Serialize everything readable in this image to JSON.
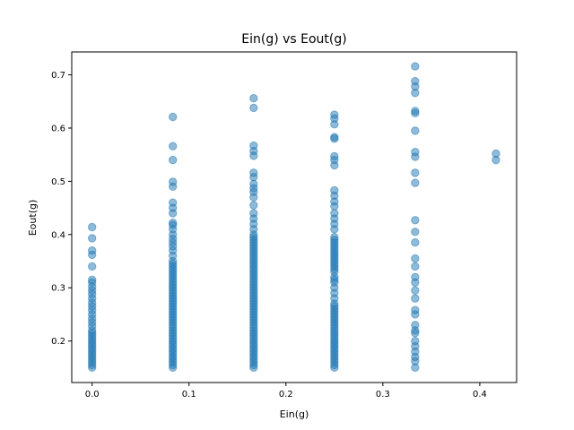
{
  "chart_data": {
    "type": "scatter",
    "title": "Ein(g) vs Eout(g)",
    "xlabel": "Ein(g)",
    "ylabel": "Eout(g)",
    "xlim": [
      -0.021,
      0.438
    ],
    "ylim": [
      0.122,
      0.743
    ],
    "xticks": [
      0.0,
      0.1,
      0.2,
      0.3,
      0.4
    ],
    "xtick_labels": [
      "0.0",
      "0.1",
      "0.2",
      "0.3",
      "0.4"
    ],
    "yticks": [
      0.2,
      0.3,
      0.4,
      0.5,
      0.6,
      0.7
    ],
    "ytick_labels": [
      "0.2",
      "0.3",
      "0.4",
      "0.5",
      "0.6",
      "0.7"
    ],
    "grid": false,
    "marker_color": "#1f77b4",
    "marker_alpha": 0.5,
    "series": [
      {
        "points": [
          [
            0.0,
            0.15
          ],
          [
            0.0,
            0.155
          ],
          [
            0.0,
            0.16
          ],
          [
            0.0,
            0.165
          ],
          [
            0.0,
            0.17
          ],
          [
            0.0,
            0.175
          ],
          [
            0.0,
            0.18
          ],
          [
            0.0,
            0.185
          ],
          [
            0.0,
            0.19
          ],
          [
            0.0,
            0.195
          ],
          [
            0.0,
            0.2
          ],
          [
            0.0,
            0.205
          ],
          [
            0.0,
            0.21
          ],
          [
            0.0,
            0.215
          ],
          [
            0.0,
            0.22
          ],
          [
            0.0,
            0.228
          ],
          [
            0.0,
            0.235
          ],
          [
            0.0,
            0.242
          ],
          [
            0.0,
            0.25
          ],
          [
            0.0,
            0.258
          ],
          [
            0.0,
            0.265
          ],
          [
            0.0,
            0.272
          ],
          [
            0.0,
            0.28
          ],
          [
            0.0,
            0.288
          ],
          [
            0.0,
            0.295
          ],
          [
            0.0,
            0.302
          ],
          [
            0.0,
            0.31
          ],
          [
            0.0,
            0.315
          ],
          [
            0.0,
            0.34
          ],
          [
            0.0,
            0.362
          ],
          [
            0.0,
            0.37
          ],
          [
            0.0,
            0.393
          ],
          [
            0.0,
            0.414
          ],
          [
            0.0833,
            0.15
          ],
          [
            0.0833,
            0.155
          ],
          [
            0.0833,
            0.16
          ],
          [
            0.0833,
            0.165
          ],
          [
            0.0833,
            0.17
          ],
          [
            0.0833,
            0.175
          ],
          [
            0.0833,
            0.18
          ],
          [
            0.0833,
            0.185
          ],
          [
            0.0833,
            0.19
          ],
          [
            0.0833,
            0.195
          ],
          [
            0.0833,
            0.2
          ],
          [
            0.0833,
            0.205
          ],
          [
            0.0833,
            0.21
          ],
          [
            0.0833,
            0.215
          ],
          [
            0.0833,
            0.22
          ],
          [
            0.0833,
            0.225
          ],
          [
            0.0833,
            0.23
          ],
          [
            0.0833,
            0.235
          ],
          [
            0.0833,
            0.24
          ],
          [
            0.0833,
            0.245
          ],
          [
            0.0833,
            0.25
          ],
          [
            0.0833,
            0.255
          ],
          [
            0.0833,
            0.26
          ],
          [
            0.0833,
            0.265
          ],
          [
            0.0833,
            0.27
          ],
          [
            0.0833,
            0.275
          ],
          [
            0.0833,
            0.28
          ],
          [
            0.0833,
            0.285
          ],
          [
            0.0833,
            0.29
          ],
          [
            0.0833,
            0.295
          ],
          [
            0.0833,
            0.3
          ],
          [
            0.0833,
            0.305
          ],
          [
            0.0833,
            0.31
          ],
          [
            0.0833,
            0.315
          ],
          [
            0.0833,
            0.32
          ],
          [
            0.0833,
            0.325
          ],
          [
            0.0833,
            0.33
          ],
          [
            0.0833,
            0.335
          ],
          [
            0.0833,
            0.34
          ],
          [
            0.0833,
            0.345
          ],
          [
            0.0833,
            0.35
          ],
          [
            0.0833,
            0.36
          ],
          [
            0.0833,
            0.37
          ],
          [
            0.0833,
            0.378
          ],
          [
            0.0833,
            0.385
          ],
          [
            0.0833,
            0.392
          ],
          [
            0.0833,
            0.4
          ],
          [
            0.0833,
            0.41
          ],
          [
            0.0833,
            0.418
          ],
          [
            0.0833,
            0.422
          ],
          [
            0.0833,
            0.44
          ],
          [
            0.0833,
            0.45
          ],
          [
            0.0833,
            0.46
          ],
          [
            0.0833,
            0.49
          ],
          [
            0.0833,
            0.499
          ],
          [
            0.0833,
            0.54
          ],
          [
            0.0833,
            0.566
          ],
          [
            0.0833,
            0.621
          ],
          [
            0.1667,
            0.15
          ],
          [
            0.1667,
            0.155
          ],
          [
            0.1667,
            0.16
          ],
          [
            0.1667,
            0.165
          ],
          [
            0.1667,
            0.17
          ],
          [
            0.1667,
            0.175
          ],
          [
            0.1667,
            0.18
          ],
          [
            0.1667,
            0.185
          ],
          [
            0.1667,
            0.19
          ],
          [
            0.1667,
            0.195
          ],
          [
            0.1667,
            0.2
          ],
          [
            0.1667,
            0.205
          ],
          [
            0.1667,
            0.21
          ],
          [
            0.1667,
            0.215
          ],
          [
            0.1667,
            0.22
          ],
          [
            0.1667,
            0.225
          ],
          [
            0.1667,
            0.23
          ],
          [
            0.1667,
            0.235
          ],
          [
            0.1667,
            0.24
          ],
          [
            0.1667,
            0.245
          ],
          [
            0.1667,
            0.25
          ],
          [
            0.1667,
            0.255
          ],
          [
            0.1667,
            0.26
          ],
          [
            0.1667,
            0.265
          ],
          [
            0.1667,
            0.27
          ],
          [
            0.1667,
            0.275
          ],
          [
            0.1667,
            0.28
          ],
          [
            0.1667,
            0.285
          ],
          [
            0.1667,
            0.29
          ],
          [
            0.1667,
            0.295
          ],
          [
            0.1667,
            0.3
          ],
          [
            0.1667,
            0.305
          ],
          [
            0.1667,
            0.31
          ],
          [
            0.1667,
            0.315
          ],
          [
            0.1667,
            0.32
          ],
          [
            0.1667,
            0.325
          ],
          [
            0.1667,
            0.33
          ],
          [
            0.1667,
            0.335
          ],
          [
            0.1667,
            0.34
          ],
          [
            0.1667,
            0.345
          ],
          [
            0.1667,
            0.35
          ],
          [
            0.1667,
            0.355
          ],
          [
            0.1667,
            0.36
          ],
          [
            0.1667,
            0.365
          ],
          [
            0.1667,
            0.37
          ],
          [
            0.1667,
            0.375
          ],
          [
            0.1667,
            0.38
          ],
          [
            0.1667,
            0.385
          ],
          [
            0.1667,
            0.39
          ],
          [
            0.1667,
            0.395
          ],
          [
            0.1667,
            0.4
          ],
          [
            0.1667,
            0.41
          ],
          [
            0.1667,
            0.42
          ],
          [
            0.1667,
            0.43
          ],
          [
            0.1667,
            0.44
          ],
          [
            0.1667,
            0.455
          ],
          [
            0.1667,
            0.47
          ],
          [
            0.1667,
            0.48
          ],
          [
            0.1667,
            0.487
          ],
          [
            0.1667,
            0.495
          ],
          [
            0.1667,
            0.508
          ],
          [
            0.1667,
            0.516
          ],
          [
            0.1667,
            0.548
          ],
          [
            0.1667,
            0.557
          ],
          [
            0.1667,
            0.567
          ],
          [
            0.1667,
            0.638
          ],
          [
            0.1667,
            0.656
          ],
          [
            0.25,
            0.15
          ],
          [
            0.25,
            0.155
          ],
          [
            0.25,
            0.16
          ],
          [
            0.25,
            0.165
          ],
          [
            0.25,
            0.17
          ],
          [
            0.25,
            0.175
          ],
          [
            0.25,
            0.18
          ],
          [
            0.25,
            0.185
          ],
          [
            0.25,
            0.19
          ],
          [
            0.25,
            0.195
          ],
          [
            0.25,
            0.2
          ],
          [
            0.25,
            0.205
          ],
          [
            0.25,
            0.21
          ],
          [
            0.25,
            0.215
          ],
          [
            0.25,
            0.22
          ],
          [
            0.25,
            0.225
          ],
          [
            0.25,
            0.23
          ],
          [
            0.25,
            0.235
          ],
          [
            0.25,
            0.24
          ],
          [
            0.25,
            0.245
          ],
          [
            0.25,
            0.25
          ],
          [
            0.25,
            0.255
          ],
          [
            0.25,
            0.26
          ],
          [
            0.25,
            0.265
          ],
          [
            0.25,
            0.27
          ],
          [
            0.25,
            0.28
          ],
          [
            0.25,
            0.29
          ],
          [
            0.25,
            0.3
          ],
          [
            0.25,
            0.31
          ],
          [
            0.25,
            0.315
          ],
          [
            0.25,
            0.32
          ],
          [
            0.25,
            0.33
          ],
          [
            0.25,
            0.335
          ],
          [
            0.25,
            0.34
          ],
          [
            0.25,
            0.345
          ],
          [
            0.25,
            0.35
          ],
          [
            0.25,
            0.355
          ],
          [
            0.25,
            0.36
          ],
          [
            0.25,
            0.365
          ],
          [
            0.25,
            0.37
          ],
          [
            0.25,
            0.375
          ],
          [
            0.25,
            0.38
          ],
          [
            0.25,
            0.385
          ],
          [
            0.25,
            0.39
          ],
          [
            0.25,
            0.395
          ],
          [
            0.25,
            0.41
          ],
          [
            0.25,
            0.42
          ],
          [
            0.25,
            0.43
          ],
          [
            0.25,
            0.44
          ],
          [
            0.25,
            0.453
          ],
          [
            0.25,
            0.462
          ],
          [
            0.25,
            0.473
          ],
          [
            0.25,
            0.483
          ],
          [
            0.25,
            0.53
          ],
          [
            0.25,
            0.54
          ],
          [
            0.25,
            0.547
          ],
          [
            0.25,
            0.58
          ],
          [
            0.25,
            0.583
          ],
          [
            0.25,
            0.607
          ],
          [
            0.25,
            0.618
          ],
          [
            0.25,
            0.625
          ],
          [
            0.3333,
            0.15
          ],
          [
            0.3333,
            0.162
          ],
          [
            0.3333,
            0.17
          ],
          [
            0.3333,
            0.18
          ],
          [
            0.3333,
            0.19
          ],
          [
            0.3333,
            0.2
          ],
          [
            0.3333,
            0.215
          ],
          [
            0.3333,
            0.22
          ],
          [
            0.3333,
            0.23
          ],
          [
            0.3333,
            0.25
          ],
          [
            0.3333,
            0.258
          ],
          [
            0.3333,
            0.28
          ],
          [
            0.3333,
            0.295
          ],
          [
            0.3333,
            0.31
          ],
          [
            0.3333,
            0.32
          ],
          [
            0.3333,
            0.34
          ],
          [
            0.3333,
            0.355
          ],
          [
            0.3333,
            0.385
          ],
          [
            0.3333,
            0.405
          ],
          [
            0.3333,
            0.427
          ],
          [
            0.3333,
            0.497
          ],
          [
            0.3333,
            0.516
          ],
          [
            0.3333,
            0.546
          ],
          [
            0.3333,
            0.555
          ],
          [
            0.3333,
            0.595
          ],
          [
            0.3333,
            0.628
          ],
          [
            0.3333,
            0.632
          ],
          [
            0.3333,
            0.666
          ],
          [
            0.3333,
            0.678
          ],
          [
            0.3333,
            0.688
          ],
          [
            0.3333,
            0.716
          ],
          [
            0.4167,
            0.54
          ],
          [
            0.4167,
            0.552
          ]
        ]
      }
    ]
  }
}
